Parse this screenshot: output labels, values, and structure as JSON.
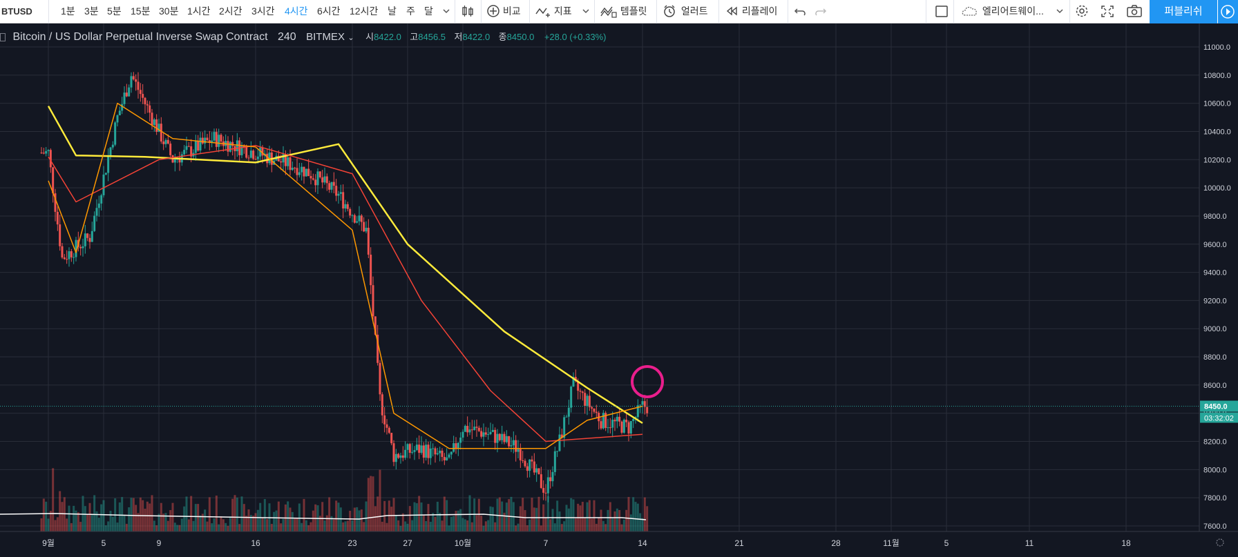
{
  "toolbar": {
    "symbol": "BTUSD",
    "intervals": [
      "1분",
      "3분",
      "5분",
      "15분",
      "30분",
      "1시간",
      "2시간",
      "3시간",
      "4시간",
      "6시간",
      "12시간",
      "날",
      "주",
      "달"
    ],
    "active_interval": "4시간",
    "compare": "비교",
    "indicators": "지표",
    "templates": "템플릿",
    "alerts": "얼러트",
    "replay": "리플레이",
    "layout_name": "엘리어트웨이...",
    "publish": "퍼블리쉬"
  },
  "legend": {
    "title": "Bitcoin / US Dollar Perpetual Inverse Swap Contract",
    "interval": "240",
    "exchange": "BITMEX",
    "open_label": "시",
    "open": "8422.0",
    "high_label": "고",
    "high": "8456.5",
    "low_label": "저",
    "low": "8422.0",
    "close_label": "종",
    "close": "8450.0",
    "change": "+28.0 (+0.33%)"
  },
  "price_axis": {
    "ticks": [
      "11000.0",
      "10800.0",
      "10600.0",
      "10400.0",
      "10200.0",
      "10000.0",
      "9800.0",
      "9600.0",
      "9400.0",
      "9200.0",
      "9000.0",
      "8800.0",
      "8600.0",
      "8400.0",
      "8200.0",
      "8000.0",
      "7800.0",
      "7600.0"
    ],
    "last_price": "8450.0",
    "countdown": "03:32:02"
  },
  "time_axis": {
    "ticks": [
      "9월",
      "5",
      "9",
      "16",
      "23",
      "27",
      "10월",
      "7",
      "14",
      "21",
      "28",
      "11월",
      "5",
      "11",
      "18"
    ]
  },
  "colors": {
    "background": "#131722",
    "grid": "#2a2e39",
    "up": "#26a69a",
    "down": "#ef5350",
    "ma_slow": "#ffeb3b",
    "ma_mid": "#f44336",
    "ma_fast": "#ff9800",
    "volume_ma": "#ffffff",
    "highlight_circle": "#e91e8c",
    "accent": "#2196f3"
  },
  "chart_data": {
    "type": "candlestick",
    "y_range": [
      7550,
      11150
    ],
    "timeframe": "240",
    "dates": [
      "2019-09-01",
      "2019-10-14"
    ],
    "price_points_approx": [
      [
        "2019-09-01",
        10250
      ],
      [
        "2019-09-02",
        9500
      ],
      [
        "2019-09-04",
        9650
      ],
      [
        "2019-09-06",
        10500
      ],
      [
        "2019-09-07",
        10800
      ],
      [
        "2019-09-10",
        10200
      ],
      [
        "2019-09-13",
        10350
      ],
      [
        "2019-09-16",
        10250
      ],
      [
        "2019-09-19",
        10150
      ],
      [
        "2019-09-20",
        10100
      ],
      [
        "2019-09-22",
        9950
      ],
      [
        "2019-09-24",
        9700
      ],
      [
        "2019-09-25",
        8500
      ],
      [
        "2019-09-26",
        8100
      ],
      [
        "2019-09-28",
        8150
      ],
      [
        "2019-09-30",
        8050
      ],
      [
        "2019-10-01",
        8300
      ],
      [
        "2019-10-03",
        8250
      ],
      [
        "2019-10-05",
        8150
      ],
      [
        "2019-10-07",
        7850
      ],
      [
        "2019-10-08",
        8200
      ],
      [
        "2019-10-09",
        8600
      ],
      [
        "2019-10-11",
        8350
      ],
      [
        "2019-10-13",
        8300
      ],
      [
        "2019-10-14",
        8450
      ]
    ],
    "moving_averages": [
      {
        "color": "yellow",
        "points": [
          [
            "2019-09-01",
            10580
          ],
          [
            "2019-09-03",
            10230
          ],
          [
            "2019-09-08",
            10220
          ],
          [
            "2019-09-16",
            10180
          ],
          [
            "2019-09-22",
            10310
          ],
          [
            "2019-09-27",
            9600
          ],
          [
            "2019-10-04",
            8980
          ],
          [
            "2019-10-10",
            8580
          ],
          [
            "2019-10-14",
            8330
          ]
        ]
      },
      {
        "color": "red",
        "points": [
          [
            "2019-09-01",
            10220
          ],
          [
            "2019-09-03",
            9900
          ],
          [
            "2019-09-09",
            10200
          ],
          [
            "2019-09-16",
            10300
          ],
          [
            "2019-09-23",
            10100
          ],
          [
            "2019-09-28",
            9200
          ],
          [
            "2019-10-03",
            8560
          ],
          [
            "2019-10-07",
            8200
          ],
          [
            "2019-10-14",
            8250
          ]
        ]
      },
      {
        "color": "orange",
        "points": [
          [
            "2019-09-01",
            10050
          ],
          [
            "2019-09-03",
            9540
          ],
          [
            "2019-09-06",
            10600
          ],
          [
            "2019-09-10",
            10350
          ],
          [
            "2019-09-16",
            10290
          ],
          [
            "2019-09-23",
            9700
          ],
          [
            "2019-09-26",
            8400
          ],
          [
            "2019-09-30",
            8150
          ],
          [
            "2019-10-07",
            8150
          ],
          [
            "2019-10-10",
            8350
          ],
          [
            "2019-10-14",
            8450
          ]
        ]
      }
    ]
  }
}
